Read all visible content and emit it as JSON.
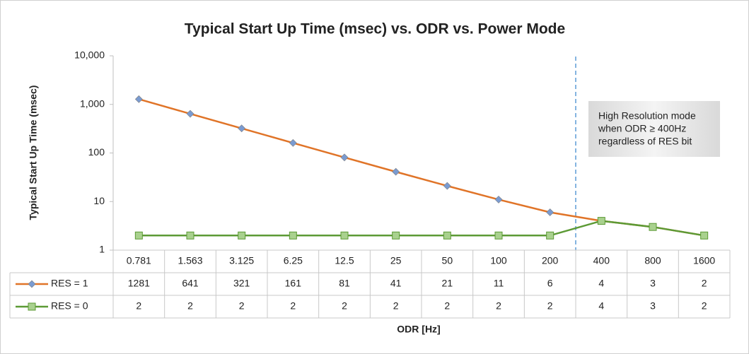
{
  "chart_data": {
    "type": "line",
    "title": "Typical Start Up Time (msec) vs. ODR vs. Power Mode",
    "x_label": "ODR [Hz]",
    "y_label": "Typical Start Up Time (msec)",
    "categories": [
      "0.781",
      "1.563",
      "3.125",
      "6.25",
      "12.5",
      "25",
      "50",
      "100",
      "200",
      "400",
      "800",
      "1600"
    ],
    "series": [
      {
        "name": "RES = 1",
        "color": "#e07428",
        "marker": "diamond",
        "marker_color": "#7a9bd1",
        "values": [
          1281,
          641,
          321,
          161,
          81,
          41,
          21,
          11,
          6,
          4,
          3,
          2
        ]
      },
      {
        "name": "RES = 0",
        "color": "#5c9a35",
        "marker": "square",
        "marker_color": "#a9d18e",
        "values": [
          2,
          2,
          2,
          2,
          2,
          2,
          2,
          2,
          2,
          4,
          3,
          2
        ]
      }
    ],
    "ylim": [
      1,
      10000
    ],
    "yticks": [
      1,
      10,
      100,
      {
        "value": 1000,
        "label": "1,000"
      },
      {
        "value": 10000,
        "label": "10,000"
      }
    ],
    "log_y": true,
    "grid": false,
    "annotation": [
      "High Resolution mode",
      "when ODR ≥ 400Hz",
      "regardless of RES bit"
    ]
  }
}
